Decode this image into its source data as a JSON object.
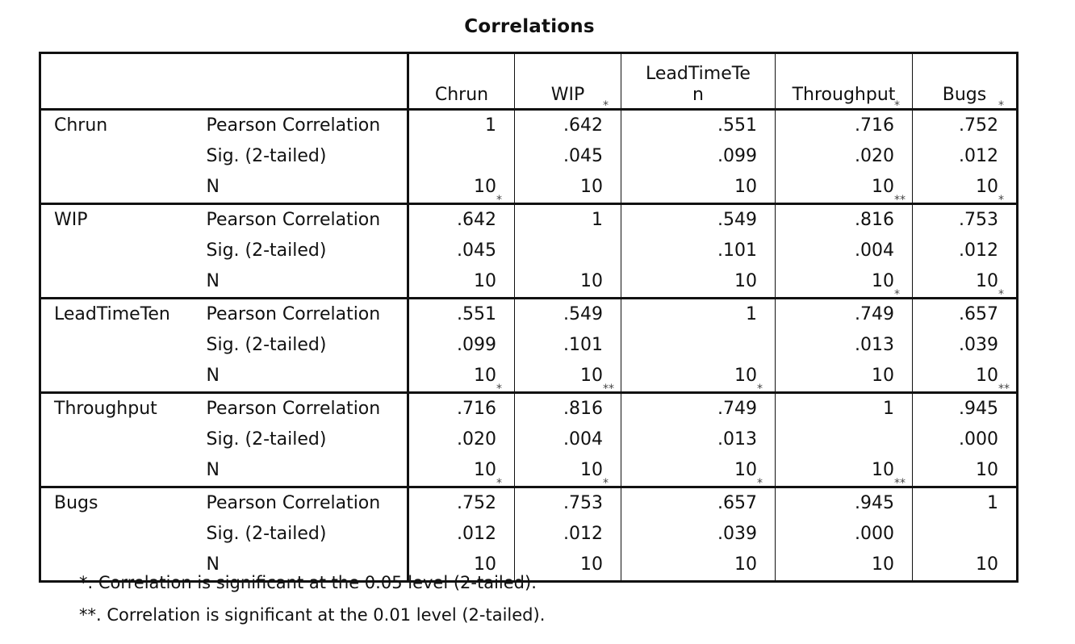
{
  "title": "Correlations",
  "columns": [
    "Chrun",
    "WIP",
    "LeadTimeTe\nn",
    "Throughput",
    "Bugs"
  ],
  "stat_labels": [
    "Pearson Correlation",
    "Sig. (2-tailed)",
    "N"
  ],
  "rows": [
    {
      "variable": "Chrun",
      "pearson": [
        {
          "v": "1",
          "s": ""
        },
        {
          "v": ".642",
          "s": "*"
        },
        {
          "v": ".551",
          "s": ""
        },
        {
          "v": ".716",
          "s": "*"
        },
        {
          "v": ".752",
          "s": "*"
        }
      ],
      "sig": [
        "",
        ".045",
        ".099",
        ".020",
        ".012"
      ],
      "n": [
        "10",
        "10",
        "10",
        "10",
        "10"
      ]
    },
    {
      "variable": "WIP",
      "pearson": [
        {
          "v": ".642",
          "s": "*"
        },
        {
          "v": "1",
          "s": ""
        },
        {
          "v": ".549",
          "s": ""
        },
        {
          "v": ".816",
          "s": "**"
        },
        {
          "v": ".753",
          "s": "*"
        }
      ],
      "sig": [
        ".045",
        "",
        ".101",
        ".004",
        ".012"
      ],
      "n": [
        "10",
        "10",
        "10",
        "10",
        "10"
      ]
    },
    {
      "variable": "LeadTimeTen",
      "pearson": [
        {
          "v": ".551",
          "s": ""
        },
        {
          "v": ".549",
          "s": ""
        },
        {
          "v": "1",
          "s": ""
        },
        {
          "v": ".749",
          "s": "*"
        },
        {
          "v": ".657",
          "s": "*"
        }
      ],
      "sig": [
        ".099",
        ".101",
        "",
        ".013",
        ".039"
      ],
      "n": [
        "10",
        "10",
        "10",
        "10",
        "10"
      ]
    },
    {
      "variable": "Throughput",
      "pearson": [
        {
          "v": ".716",
          "s": "*"
        },
        {
          "v": ".816",
          "s": "**"
        },
        {
          "v": ".749",
          "s": "*"
        },
        {
          "v": "1",
          "s": ""
        },
        {
          "v": ".945",
          "s": "**"
        }
      ],
      "sig": [
        ".020",
        ".004",
        ".013",
        "",
        ".000"
      ],
      "n": [
        "10",
        "10",
        "10",
        "10",
        "10"
      ]
    },
    {
      "variable": "Bugs",
      "pearson": [
        {
          "v": ".752",
          "s": "*"
        },
        {
          "v": ".753",
          "s": "*"
        },
        {
          "v": ".657",
          "s": "*"
        },
        {
          "v": ".945",
          "s": "**"
        },
        {
          "v": "1",
          "s": ""
        }
      ],
      "sig": [
        ".012",
        ".012",
        ".039",
        ".000",
        ""
      ],
      "n": [
        "10",
        "10",
        "10",
        "10",
        "10"
      ]
    }
  ],
  "footnotes": [
    "*. Correlation is significant at the 0.05 level (2-tailed).",
    "**. Correlation is significant at the 0.01 level (2-tailed)."
  ]
}
